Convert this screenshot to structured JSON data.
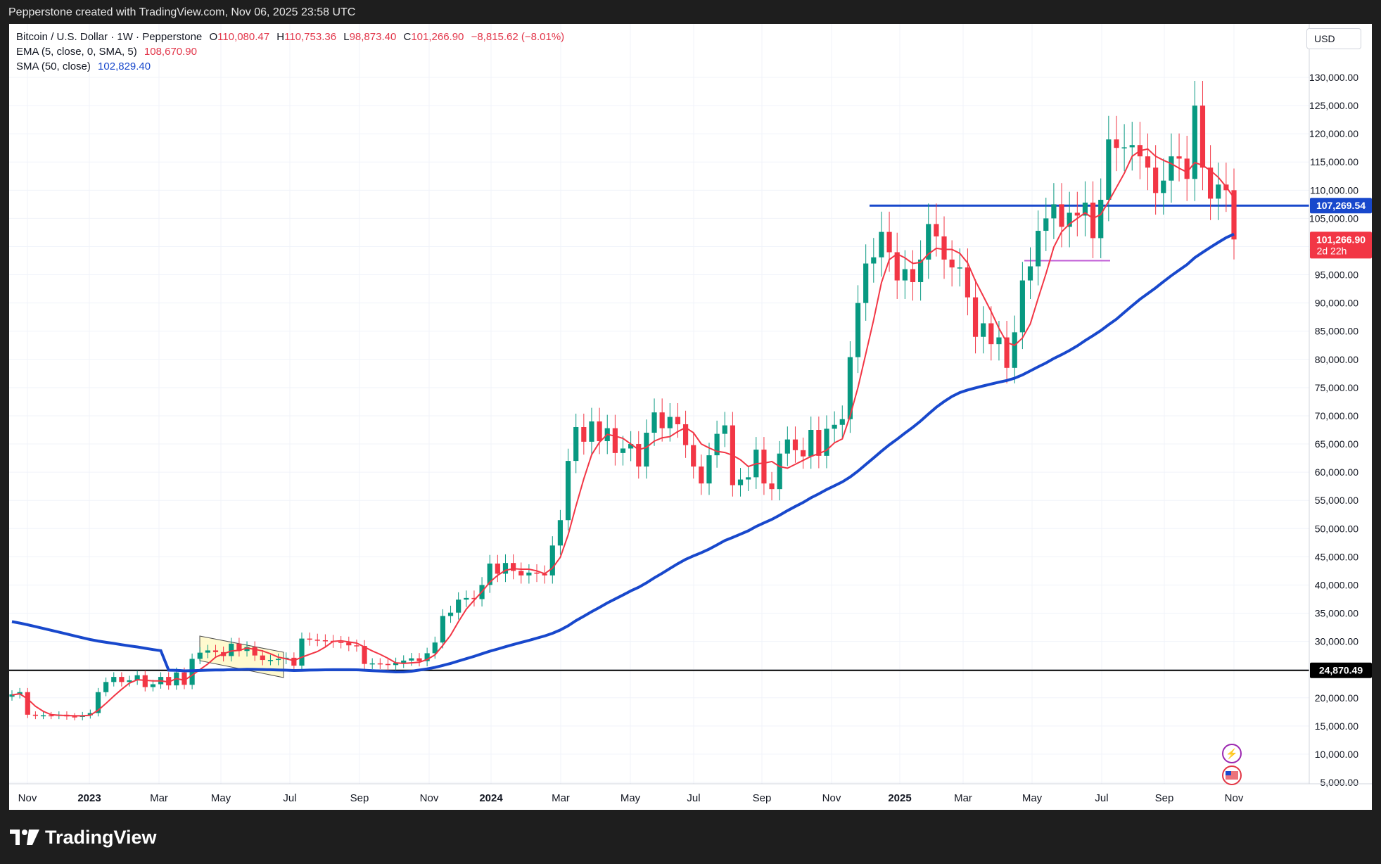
{
  "caption": "Pepperstone created with TradingView.com, Nov 06, 2025 23:58 UTC",
  "brand": "TradingView",
  "currency_button": "USD",
  "legend": {
    "title": "Bitcoin / U.S. Dollar · 1W · Pepperstone",
    "open_label": "O",
    "open": "110,080.47",
    "high_label": "H",
    "high": "110,753.36",
    "low_label": "L",
    "low": "98,873.40",
    "close_label": "C",
    "close": "101,266.90",
    "change": "−8,815.62 (−8.01%)",
    "ema_label": "EMA (5, close, 0, SMA, 5)",
    "ema_value": "108,670.90",
    "sma_label": "SMA (50, close)",
    "sma_value": "102,829.40"
  },
  "price_labels": {
    "resistance": "107,269.54",
    "current": "101,266.90",
    "countdown": "2d 22h",
    "support": "24,870.49"
  },
  "colors": {
    "up": "#089981",
    "down": "#f23645",
    "ema": "#f23645",
    "sma": "#1848cc",
    "resistance": "#1848cc",
    "support": "#000000",
    "accent_zone": "#c05bd6"
  },
  "chart_data": {
    "type": "candlestick",
    "title": "Bitcoin / U.S. Dollar · 1W · Pepperstone",
    "ylim": [
      5000,
      133000
    ],
    "y_ticks": [
      "5,000.00",
      "10,000.00",
      "15,000.00",
      "20,000.00",
      "25,000.00",
      "30,000.00",
      "35,000.00",
      "40,000.00",
      "45,000.00",
      "50,000.00",
      "55,000.00",
      "60,000.00",
      "65,000.00",
      "70,000.00",
      "75,000.00",
      "80,000.00",
      "85,000.00",
      "90,000.00",
      "95,000.00",
      "100,000.00",
      "105,000.00",
      "110,000.00",
      "115,000.00",
      "120,000.00",
      "125,000.00",
      "130,000.00"
    ],
    "x_ticks": [
      {
        "label": "Nov",
        "bold": false
      },
      {
        "label": "2023",
        "bold": true
      },
      {
        "label": "Mar",
        "bold": false
      },
      {
        "label": "May",
        "bold": false
      },
      {
        "label": "Jul",
        "bold": false
      },
      {
        "label": "Sep",
        "bold": false
      },
      {
        "label": "Nov",
        "bold": false
      },
      {
        "label": "2024",
        "bold": true
      },
      {
        "label": "Mar",
        "bold": false
      },
      {
        "label": "May",
        "bold": false
      },
      {
        "label": "Jul",
        "bold": false
      },
      {
        "label": "Sep",
        "bold": false
      },
      {
        "label": "Nov",
        "bold": false
      },
      {
        "label": "2025",
        "bold": true
      },
      {
        "label": "Mar",
        "bold": false
      },
      {
        "label": "May",
        "bold": false
      },
      {
        "label": "Jul",
        "bold": false
      },
      {
        "label": "Sep",
        "bold": false
      },
      {
        "label": "Nov",
        "bold": false
      }
    ],
    "horizontal_levels": [
      107269.54,
      24870.49
    ],
    "closes": [
      20600,
      21000,
      17000,
      16800,
      16900,
      16800,
      17000,
      16700,
      16600,
      16900,
      17300,
      21000,
      22800,
      23700,
      22800,
      23100,
      24000,
      21900,
      22400,
      23700,
      22200,
      24500,
      22300,
      26900,
      28000,
      28400,
      28100,
      27400,
      29600,
      28300,
      29000,
      27500,
      26700,
      26700,
      26900,
      27100,
      25700,
      30500,
      30300,
      30200,
      30100,
      29900,
      29800,
      29300,
      29200,
      26000,
      26100,
      26000,
      25800,
      26200,
      26600,
      27000,
      26500,
      27900,
      29800,
      34500,
      35100,
      37400,
      37700,
      37500,
      40000,
      43800,
      42000,
      43900,
      42500,
      41700,
      42200,
      42000,
      41700,
      47000,
      51500,
      62000,
      68000,
      65400,
      69000,
      65500,
      67800,
      63400,
      64200,
      65000,
      61000,
      67000,
      70600,
      67800,
      69800,
      68500,
      64800,
      61000,
      58000,
      63000,
      66800,
      68300,
      57700,
      58700,
      59100,
      64000,
      58000,
      57000,
      63300,
      65800,
      63900,
      62800,
      67500,
      62900,
      67700,
      68400,
      69400,
      80400,
      90000,
      97000,
      98100,
      102600,
      99000,
      94000,
      96000,
      93700,
      97700,
      104000,
      101800,
      97700,
      96300,
      96300,
      91000,
      84000,
      86400,
      82700,
      83900,
      78500,
      84800,
      94000,
      96500,
      102800,
      105000,
      107500,
      103500,
      106000,
      105500,
      107800,
      101500,
      108300,
      119000,
      117500,
      117600,
      118000,
      116000,
      114000,
      109500,
      111700,
      116000,
      115600,
      112000,
      125000,
      114000,
      108500,
      111000,
      110000,
      101267
    ],
    "ema5": [
      20500,
      20700,
      19800,
      18500,
      17600,
      17000,
      16900,
      16850,
      16800,
      16800,
      16900,
      17800,
      19000,
      20300,
      21500,
      22600,
      23200,
      23100,
      23000,
      23000,
      22800,
      23400,
      23100,
      24000,
      25000,
      26000,
      27200,
      27800,
      28300,
      28400,
      28800,
      28600,
      28300,
      27800,
      27200,
      26900,
      26600,
      27200,
      27700,
      28200,
      29000,
      30000,
      30100,
      29900,
      29700,
      29000,
      28300,
      27700,
      27000,
      26200,
      26100,
      26200,
      26300,
      26800,
      27600,
      29300,
      31100,
      33500,
      35700,
      37300,
      38800,
      40500,
      41700,
      42600,
      42900,
      42800,
      42800,
      42500,
      42000,
      43000,
      44900,
      48900,
      54000,
      58800,
      63100,
      65300,
      66700,
      66400,
      66000,
      65000,
      64000,
      64400,
      65500,
      66100,
      66300,
      67200,
      67900,
      67000,
      65000,
      64300,
      63700,
      63500,
      63000,
      62200,
      61000,
      61500,
      61600,
      61900,
      61000,
      60700,
      61400,
      62100,
      62800,
      63300,
      63900,
      65200,
      65900,
      70000,
      75000,
      81000,
      87000,
      93600,
      97700,
      98700,
      98000,
      97000,
      97200,
      98700,
      99700,
      99500,
      99500,
      98800,
      97100,
      93900,
      91200,
      88500,
      85500,
      83000,
      82500,
      83800,
      86300,
      90800,
      95200,
      99900,
      102600,
      104000,
      105000,
      106000,
      105000,
      105700,
      108000,
      110500,
      113000,
      116000,
      117000,
      117300,
      116000,
      115300,
      114700,
      113900,
      113200,
      114900,
      114400,
      113500,
      112300,
      110600,
      108670
    ]
  }
}
